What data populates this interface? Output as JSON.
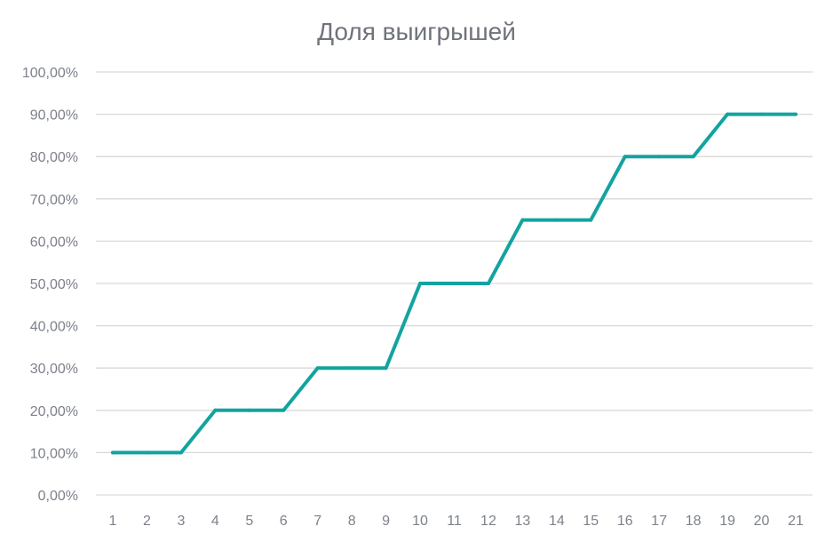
{
  "chart_data": {
    "type": "line",
    "title": "Доля выигрышей",
    "xlabel": "",
    "ylabel": "",
    "ylim": [
      0,
      100
    ],
    "y_ticks": [
      "0,00%",
      "10,00%",
      "20,00%",
      "30,00%",
      "40,00%",
      "50,00%",
      "60,00%",
      "70,00%",
      "80,00%",
      "90,00%",
      "100,00%"
    ],
    "categories": [
      "1",
      "2",
      "3",
      "4",
      "5",
      "6",
      "7",
      "8",
      "9",
      "10",
      "11",
      "12",
      "13",
      "14",
      "15",
      "16",
      "17",
      "18",
      "19",
      "20",
      "21"
    ],
    "series": [
      {
        "values": [
          10,
          10,
          10,
          20,
          20,
          20,
          30,
          30,
          30,
          50,
          50,
          50,
          65,
          65,
          65,
          80,
          80,
          80,
          90,
          90,
          90
        ]
      }
    ],
    "grid": true,
    "legend": "none",
    "colors": {
      "line": "#13a3a0",
      "grid": "#d9d9d9",
      "text": "#7d818a",
      "title": "#6f737b"
    }
  }
}
